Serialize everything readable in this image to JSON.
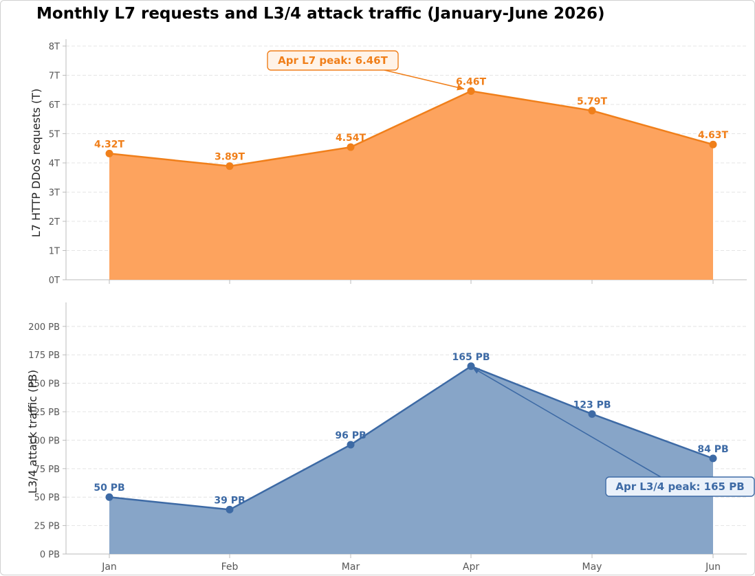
{
  "title": "Monthly L7 requests and L3/4 attack traffic (January-June 2026)",
  "colors": {
    "l7_line": "#F07F1A",
    "l7_fill": "#FDA35E",
    "l34_line": "#3D6AA5",
    "l34_fill": "#87A5C8",
    "grid": "#e4e4e4",
    "axis": "#bbbbbb"
  },
  "chart_data": [
    {
      "type": "area",
      "x": [
        "Jan",
        "Feb",
        "Mar",
        "Apr",
        "May",
        "Jun"
      ],
      "values": [
        4.32,
        3.89,
        4.54,
        6.46,
        5.79,
        4.63
      ],
      "data_labels": [
        "4.32T",
        "3.89T",
        "4.54T",
        "6.46T",
        "5.79T",
        "4.63T"
      ],
      "ylabel": "L7 HTTP DDoS requests (T)",
      "ylim": [
        0,
        8
      ],
      "yticks": [
        0,
        1,
        2,
        3,
        4,
        5,
        6,
        7,
        8
      ],
      "ytick_labels": [
        "0T",
        "1T",
        "2T",
        "3T",
        "4T",
        "5T",
        "6T",
        "7T",
        "8T"
      ],
      "grid": true,
      "annotation": {
        "text": "Apr L7 peak: 6.46T",
        "x": "Apr",
        "y": 6.46
      }
    },
    {
      "type": "area",
      "x": [
        "Jan",
        "Feb",
        "Mar",
        "Apr",
        "May",
        "Jun"
      ],
      "values": [
        50,
        39,
        96,
        165,
        123,
        84
      ],
      "data_labels": [
        "50 PB",
        "39 PB",
        "96 PB",
        "165 PB",
        "123 PB",
        "84 PB"
      ],
      "ylabel": "L3/4 attack traffic (PB)",
      "ylim": [
        0,
        215
      ],
      "yticks": [
        0,
        25,
        50,
        75,
        100,
        125,
        150,
        175,
        200
      ],
      "ytick_labels": [
        "0 PB",
        "25 PB",
        "50 PB",
        "75 PB",
        "100 PB",
        "125 PB",
        "150 PB",
        "175 PB",
        "200 PB"
      ],
      "xtick_labels": [
        "Jan",
        "Feb",
        "Mar",
        "Apr",
        "May",
        "Jun"
      ],
      "grid": true,
      "annotation": {
        "text": "Apr L3/4 peak: 165 PB",
        "x": "Apr",
        "y": 165
      }
    }
  ]
}
